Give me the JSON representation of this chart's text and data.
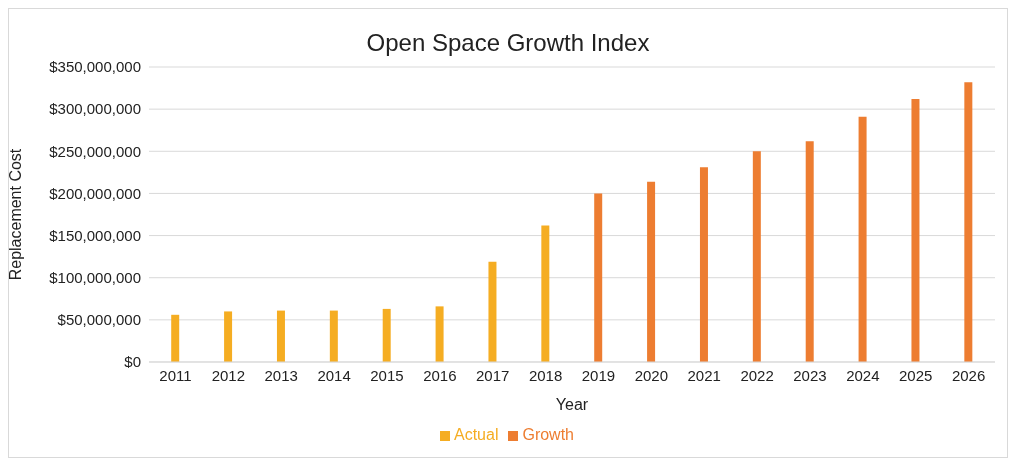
{
  "chart_data": {
    "type": "bar",
    "title": "Open Space Growth Index",
    "xlabel": "Year",
    "ylabel": "Replacement Cost",
    "categories": [
      "2011",
      "2012",
      "2013",
      "2014",
      "2015",
      "2016",
      "2017",
      "2018",
      "2019",
      "2020",
      "2021",
      "2022",
      "2023",
      "2024",
      "2025",
      "2026"
    ],
    "series": [
      {
        "name": "Actual",
        "color": "#f5ad22",
        "values": [
          56000000,
          60000000,
          61000000,
          61000000,
          63000000,
          66000000,
          119000000,
          162000000,
          null,
          null,
          null,
          null,
          null,
          null,
          null,
          null
        ]
      },
      {
        "name": "Growth",
        "color": "#ed7d31",
        "values": [
          null,
          null,
          null,
          null,
          null,
          null,
          null,
          null,
          200000000,
          214000000,
          231000000,
          250000000,
          262000000,
          291000000,
          312000000,
          332000000
        ]
      }
    ],
    "stacked": true,
    "ylim": [
      0,
      350000000
    ],
    "yticks": [
      {
        "value": 0,
        "label": "$0"
      },
      {
        "value": 50000000,
        "label": "$50,000,000"
      },
      {
        "value": 100000000,
        "label": "$100,000,000"
      },
      {
        "value": 150000000,
        "label": "$150,000,000"
      },
      {
        "value": 200000000,
        "label": "$200,000,000"
      },
      {
        "value": 250000000,
        "label": "$250,000,000"
      },
      {
        "value": 300000000,
        "label": "$300,000,000"
      },
      {
        "value": 350000000,
        "label": "$350,000,000"
      }
    ],
    "grid": "y",
    "legend": "bottom"
  }
}
